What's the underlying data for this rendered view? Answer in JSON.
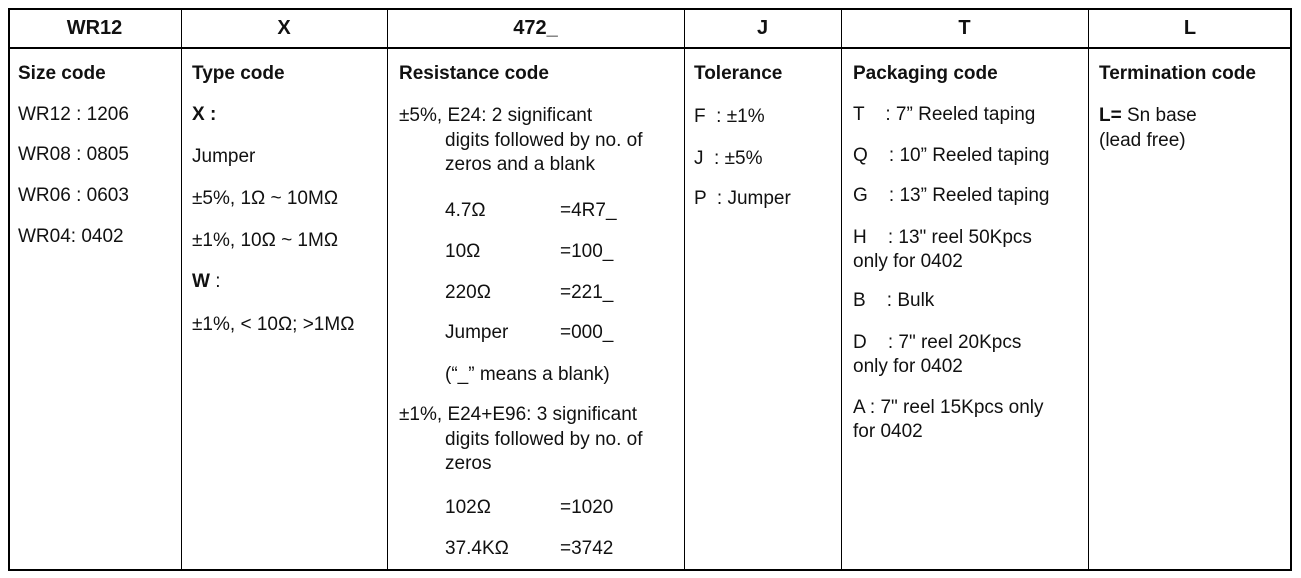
{
  "header": [
    "WR12",
    "X",
    "472_",
    "J",
    "T",
    "L"
  ],
  "size": {
    "title": "Size code",
    "items": [
      "WR12 : 1206",
      "WR08 : 0805",
      "WR06 : 0603",
      "WR04: 0402"
    ]
  },
  "type": {
    "title": "Type code",
    "x_label": "X :",
    "x_items": [
      "Jumper",
      "±5%, 1Ω ~ 10MΩ",
      "±1%, 10Ω ~ 1MΩ"
    ],
    "w_label": "W",
    "w_colon": " :",
    "w_items": [
      "±1%, < 10Ω; >1MΩ"
    ]
  },
  "resistance": {
    "title": "Resistance code",
    "e24_line1": "±5%, E24: 2 significant",
    "e24_line2": "digits followed by no. of",
    "e24_line3": "zeros and a blank",
    "e24_examples": [
      {
        "value": "4.7Ω",
        "code": "=4R7_"
      },
      {
        "value": "10Ω",
        "code": "=100_"
      },
      {
        "value": "220Ω",
        "code": "=221_"
      },
      {
        "value": "Jumper",
        "code": "=000_"
      }
    ],
    "blank_note": "(“_” means a blank)",
    "e96_line1": "±1%, E24+E96: 3 significant",
    "e96_line2": "digits followed by no. of",
    "e96_line3": "zeros",
    "e96_examples": [
      {
        "value": "102Ω",
        "code": "=1020"
      },
      {
        "value": "37.4KΩ",
        "code": "=3742"
      }
    ]
  },
  "tolerance": {
    "title": "Tolerance",
    "items": [
      "F  : ±1%",
      "J  : ±5%",
      "P  : Jumper"
    ]
  },
  "packaging": {
    "title": "Packaging code",
    "items": [
      "T    : 7” Reeled taping",
      "Q    : 10” Reeled taping",
      "G    : 13” Reeled taping",
      "H    : 13\" reel 50Kpcs",
      "only for 0402",
      "B    : Bulk",
      "D    : 7\" reel 20Kpcs",
      "only for 0402",
      "A : 7\" reel 15Kpcs only",
      "for 0402"
    ]
  },
  "termination": {
    "title": "Termination code",
    "l_label": "L=",
    "l_text": " Sn base",
    "l_line2": "(lead free)"
  }
}
